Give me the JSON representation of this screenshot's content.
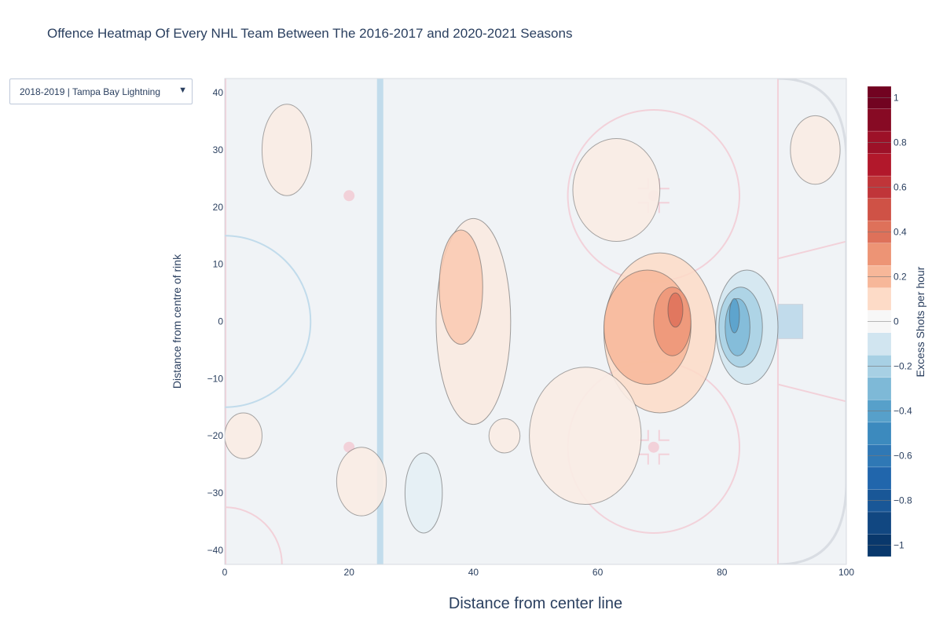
{
  "page": {
    "title": "Offence Heatmap Of Every NHL Team Between The 2016-2017 and 2020-2021 Seasons"
  },
  "dropdown": {
    "selected": "2018-2019 | Tampa Bay Lightning",
    "arrow_icon": "triangle-down-icon"
  },
  "chart_data": {
    "type": "heatmap",
    "subtype": "contour",
    "title": "Offence Heatmap Of Every NHL Team Between The 2016-2017 and 2020-2021 Seasons",
    "xlabel": "Distance from center line",
    "ylabel": "Distance from centre of rink",
    "xlim": [
      0,
      100
    ],
    "ylim": [
      -42.5,
      42.5
    ],
    "x_ticks": [
      0,
      20,
      40,
      60,
      80,
      100
    ],
    "x_tick_labels": [
      "0",
      "20",
      "40",
      "60",
      "80",
      "100"
    ],
    "y_ticks": [
      40,
      30,
      20,
      10,
      0,
      -10,
      -20,
      -30,
      -40
    ],
    "y_tick_labels": [
      "40",
      "30",
      "20",
      "10",
      "0",
      "−10",
      "−20",
      "−30",
      "−40"
    ],
    "colorbar": {
      "title": "Excess Shots per hour",
      "range": [
        -1.05,
        1.05
      ],
      "ticks": [
        1,
        0.8,
        0.6,
        0.4,
        0.2,
        0,
        -0.2,
        -0.4,
        -0.6,
        -0.8,
        -1
      ],
      "tick_labels": [
        "1",
        "0.8",
        "0.6",
        "0.4",
        "0.2",
        "0",
        "−0.2",
        "−0.4",
        "−0.6",
        "−0.8",
        "−1"
      ],
      "colorscale": "RdBu (reversed)"
    },
    "contour_levels": [
      0,
      0.1,
      0.2,
      0.3,
      0.4,
      -0.1,
      -0.2,
      -0.3,
      -0.4
    ],
    "regions": [
      {
        "level": 0.1,
        "center": [
          70,
          -2
        ],
        "spread": [
          9,
          14
        ]
      },
      {
        "level": 0.2,
        "center": [
          68,
          -1
        ],
        "spread": [
          7,
          10
        ]
      },
      {
        "level": 0.3,
        "center": [
          72,
          0
        ],
        "spread": [
          3,
          6
        ]
      },
      {
        "level": 0.4,
        "center": [
          72.5,
          2
        ],
        "spread": [
          1.2,
          3
        ]
      },
      {
        "level": 0.05,
        "center": [
          40,
          0
        ],
        "spread": [
          6,
          18
        ]
      },
      {
        "level": 0.15,
        "center": [
          38,
          6
        ],
        "spread": [
          3.5,
          10
        ]
      },
      {
        "level": -0.1,
        "center": [
          84,
          -1
        ],
        "spread": [
          5,
          10
        ]
      },
      {
        "level": -0.2,
        "center": [
          83,
          -1
        ],
        "spread": [
          3.5,
          7
        ]
      },
      {
        "level": -0.3,
        "center": [
          82.5,
          -1
        ],
        "spread": [
          2,
          5
        ]
      },
      {
        "level": -0.4,
        "center": [
          82,
          1
        ],
        "spread": [
          0.8,
          3
        ]
      },
      {
        "level": -0.05,
        "center": [
          32,
          -30
        ],
        "spread": [
          3,
          7
        ]
      }
    ]
  }
}
